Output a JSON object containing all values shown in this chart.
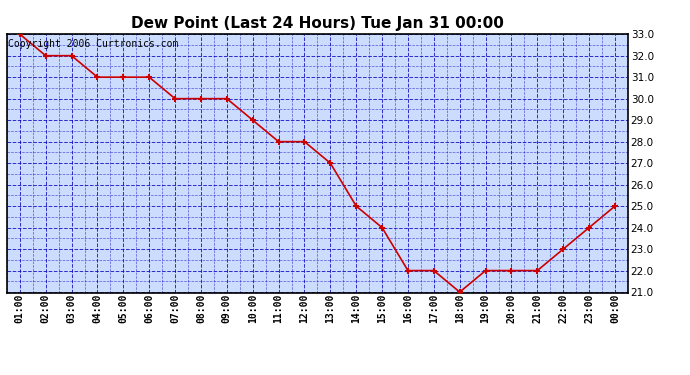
{
  "title": "Dew Point (Last 24 Hours) Tue Jan 31 00:00",
  "copyright": "Copyright 2006 Curtronics.com",
  "x_labels": [
    "01:00",
    "02:00",
    "03:00",
    "04:00",
    "05:00",
    "06:00",
    "07:00",
    "08:00",
    "09:00",
    "10:00",
    "11:00",
    "12:00",
    "13:00",
    "14:00",
    "15:00",
    "16:00",
    "17:00",
    "18:00",
    "19:00",
    "20:00",
    "21:00",
    "22:00",
    "23:00",
    "00:00"
  ],
  "y_data": [
    33.0,
    32.0,
    32.0,
    31.0,
    31.0,
    31.0,
    30.0,
    30.0,
    30.0,
    29.0,
    28.0,
    28.0,
    27.0,
    25.0,
    24.0,
    22.0,
    22.0,
    21.0,
    22.0,
    22.0,
    22.0,
    23.0,
    24.0,
    25.0
  ],
  "line_color": "#cc0000",
  "marker_color": "#cc0000",
  "plot_bg_color": "#ccdcff",
  "fig_bg_color": "#ffffff",
  "grid_color": "#0000bb",
  "border_color": "#000000",
  "ylim_min": 21.0,
  "ylim_max": 33.0,
  "title_fontsize": 11,
  "copyright_fontsize": 7,
  "tick_fontsize": 7,
  "ytick_fontsize": 7.5
}
